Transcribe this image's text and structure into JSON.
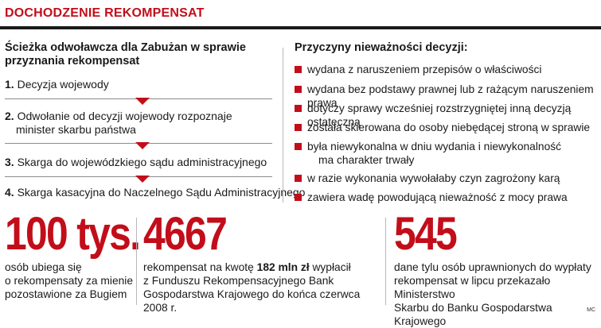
{
  "header": {
    "title": "DOCHODZENIE REKOMPENSAT"
  },
  "path": {
    "title_line1": "Ścieżka odwoławcza dla Zabużan w sprawie",
    "title_line2": "przyznania rekompensat",
    "steps": [
      {
        "num": "1.",
        "line1": "Decyzja wojewody",
        "line2": ""
      },
      {
        "num": "2.",
        "line1": "Odwołanie od decyzji wojewody rozpoznaje",
        "line2": "minister skarbu państwa"
      },
      {
        "num": "3.",
        "line1": "Skarga do wojewódzkiego sądu administracyjnego",
        "line2": ""
      },
      {
        "num": "4.",
        "line1": "Skarga kasacyjna do Naczelnego Sądu Administracyjnego",
        "line2": ""
      }
    ]
  },
  "reasons": {
    "title": "Przyczyny nieważności decyzji:",
    "items": [
      {
        "line1": "wydana z naruszeniem przepisów o właściwości",
        "line2": ""
      },
      {
        "line1": "wydana bez podstawy prawnej lub z rażącym naruszeniem prawa",
        "line2": ""
      },
      {
        "line1": "dotyczy sprawy wcześniej rozstrzygniętej inną decyzją ostateczną",
        "line2": ""
      },
      {
        "line1": "została skierowana do osoby niebędącej stroną w sprawie",
        "line2": ""
      },
      {
        "line1": "była niewykonalna w dniu wydania i niewykonalność",
        "line2": "ma charakter trwały"
      },
      {
        "line1": "w razie wykonania wywołałaby czyn zagrożony karą",
        "line2": ""
      },
      {
        "line1": "zawiera wadę powodującą nieważność z mocy prawa",
        "line2": ""
      }
    ]
  },
  "stats": [
    {
      "big": "100 tys.",
      "lines": [
        "osób ubiega się",
        "o rekompensaty za mienie",
        "pozostawione za Bugiem"
      ]
    },
    {
      "big": "4667",
      "line1_pre": "rekompensat na kwotę ",
      "line1_bold": "182 mln zł",
      "line1_post": " wypłacił",
      "lines": [
        "z Funduszu Rekompensacyjnego Bank",
        "Gospodarstwa Krajowego do końca czerwca 2008 r."
      ]
    },
    {
      "big": "545",
      "lines": [
        "dane tylu osób uprawnionych do wypłaty",
        "rekompensat w lipcu przekazało Ministerstwo",
        "Skarbu do Banku Gospodarstwa Krajowego"
      ]
    }
  ],
  "credit": "MC"
}
